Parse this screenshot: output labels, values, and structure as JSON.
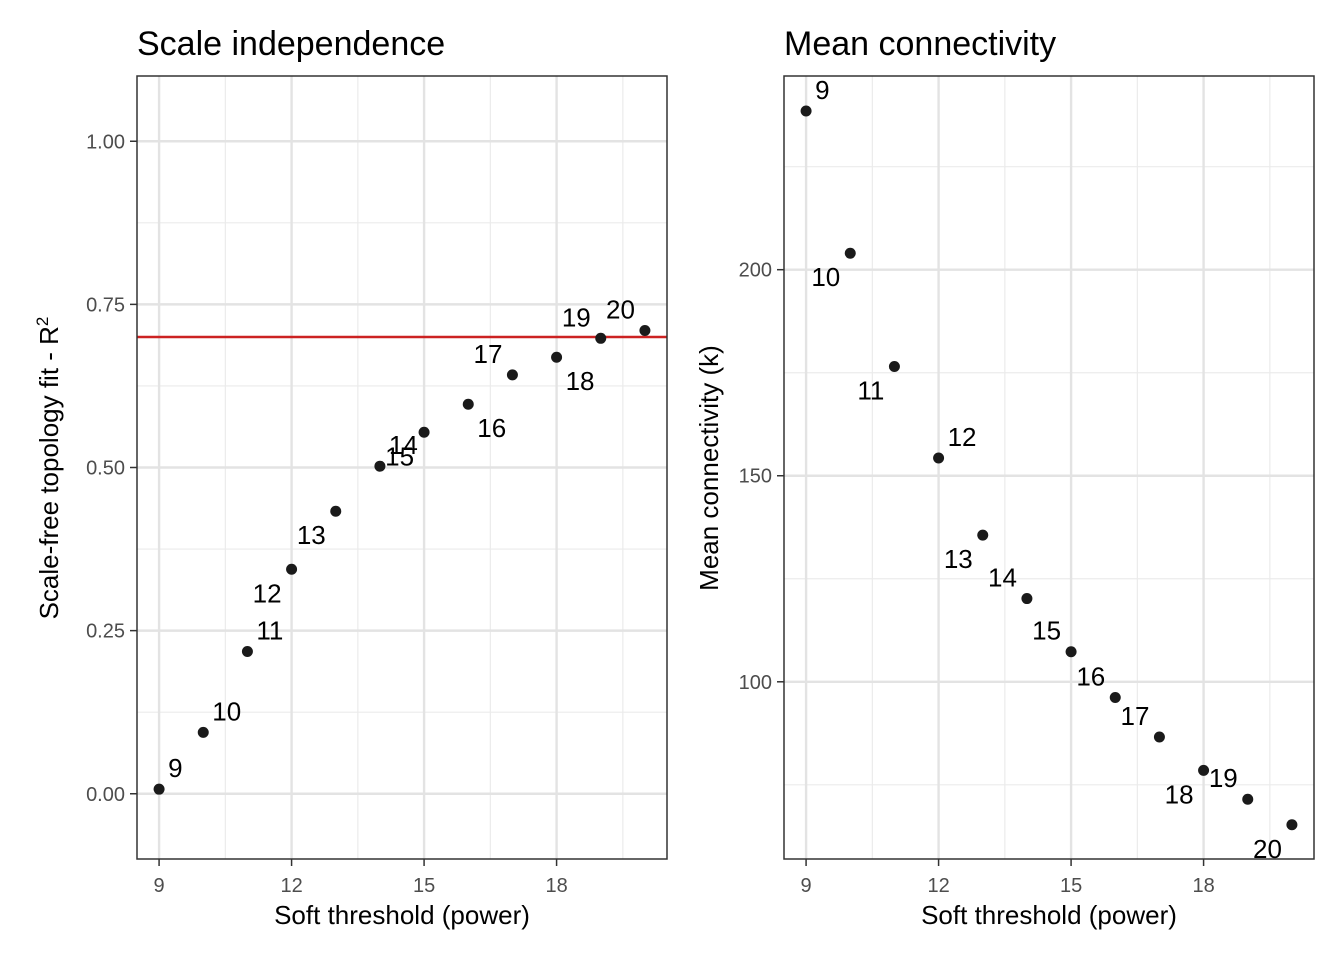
{
  "chart_data": [
    {
      "type": "scatter",
      "title": "Scale independence",
      "xlabel": "Soft threshold (power)",
      "ylabel": "Scale-free topology fit - R",
      "ylabel_superscript": "2",
      "xlim": [
        8.5,
        20.5
      ],
      "ylim": [
        -0.1,
        1.1
      ],
      "xticks": [
        9,
        12,
        15,
        18
      ],
      "xtick_labels": [
        "9",
        "12",
        "15",
        "18"
      ],
      "yticks": [
        0,
        0.25,
        0.5,
        0.75,
        1.0
      ],
      "ytick_labels": [
        "0.00",
        "0.25",
        "0.50",
        "0.75",
        "1.00"
      ],
      "grid": true,
      "hline": {
        "y": 0.7,
        "color": "#cc2222"
      },
      "point_color": "#1a1a1a",
      "points": [
        {
          "x": 9,
          "y": 0.007,
          "label": "9",
          "pos": "ur"
        },
        {
          "x": 10,
          "y": 0.094,
          "label": "10",
          "pos": "ur"
        },
        {
          "x": 11,
          "y": 0.218,
          "label": "11",
          "pos": "ur"
        },
        {
          "x": 12,
          "y": 0.344,
          "label": "12",
          "pos": "dl"
        },
        {
          "x": 13,
          "y": 0.433,
          "label": "13",
          "pos": "dl"
        },
        {
          "x": 14,
          "y": 0.502,
          "label": "14",
          "pos": "ur"
        },
        {
          "x": 15,
          "y": 0.554,
          "label": "15",
          "pos": "dl"
        },
        {
          "x": 16,
          "y": 0.597,
          "label": "16",
          "pos": "dr"
        },
        {
          "x": 17,
          "y": 0.642,
          "label": "17",
          "pos": "ul"
        },
        {
          "x": 18,
          "y": 0.669,
          "label": "18",
          "pos": "dr"
        },
        {
          "x": 19,
          "y": 0.698,
          "label": "19",
          "pos": "ul"
        },
        {
          "x": 20,
          "y": 0.71,
          "label": "20",
          "pos": "ul"
        }
      ]
    },
    {
      "type": "scatter",
      "title": "Mean connectivity",
      "xlabel": "Soft threshold (power)",
      "ylabel": "Mean connectivity (k)",
      "xlim": [
        8.5,
        20.5
      ],
      "ylim": [
        57,
        247
      ],
      "xticks": [
        9,
        12,
        15,
        18
      ],
      "xtick_labels": [
        "9",
        "12",
        "15",
        "18"
      ],
      "yticks": [
        100,
        150,
        200
      ],
      "ytick_labels": [
        "100",
        "150",
        "200"
      ],
      "grid": true,
      "point_color": "#1a1a1a",
      "points": [
        {
          "x": 9,
          "y": 238.5,
          "label": "9",
          "pos": "ur"
        },
        {
          "x": 10,
          "y": 204,
          "label": "10",
          "pos": "dl"
        },
        {
          "x": 11,
          "y": 176.5,
          "label": "11",
          "pos": "dl"
        },
        {
          "x": 12,
          "y": 154.3,
          "label": "12",
          "pos": "ur"
        },
        {
          "x": 13,
          "y": 135.6,
          "label": "13",
          "pos": "dl"
        },
        {
          "x": 14,
          "y": 120.2,
          "label": "14",
          "pos": "ul"
        },
        {
          "x": 15,
          "y": 107.3,
          "label": "15",
          "pos": "ul"
        },
        {
          "x": 16,
          "y": 96.2,
          "label": "16",
          "pos": "ul"
        },
        {
          "x": 17,
          "y": 86.6,
          "label": "17",
          "pos": "ul"
        },
        {
          "x": 18,
          "y": 78.5,
          "label": "18",
          "pos": "dl"
        },
        {
          "x": 19,
          "y": 71.5,
          "label": "19",
          "pos": "ul"
        },
        {
          "x": 20,
          "y": 65.3,
          "label": "20",
          "pos": "dl"
        }
      ]
    }
  ]
}
